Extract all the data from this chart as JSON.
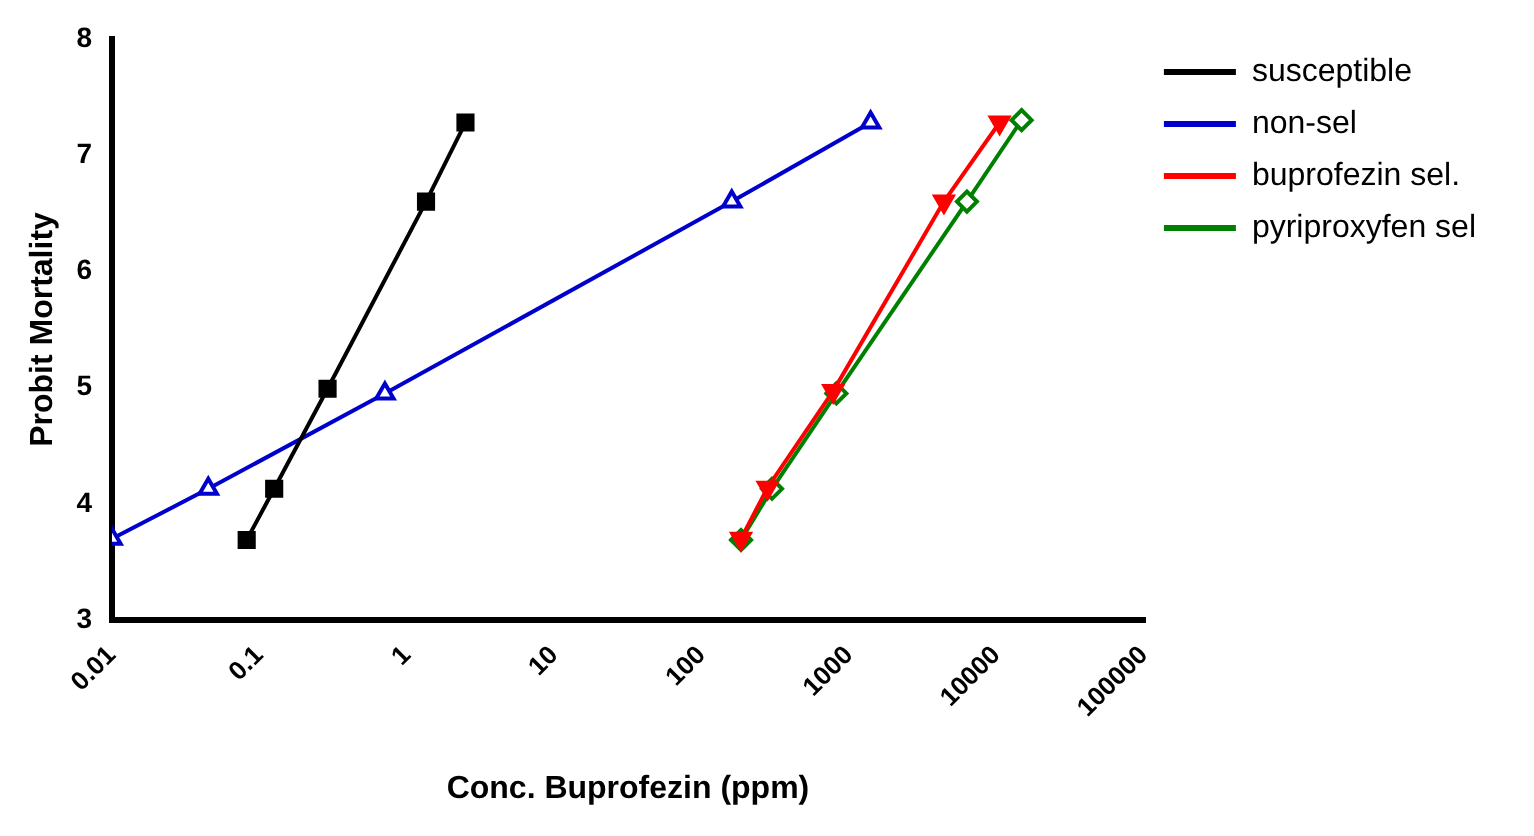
{
  "chart_data": {
    "type": "line",
    "xlabel": "Conc. Buprofezin (ppm)",
    "ylabel": "Probit Mortality",
    "log": "x",
    "xlim": [
      0.01,
      100000
    ],
    "xticks": [
      0.01,
      0.1,
      1,
      10,
      100,
      1000,
      10000,
      100000
    ],
    "ylim": [
      3,
      8
    ],
    "yticks": [
      3,
      4,
      5,
      6,
      7,
      8
    ],
    "grid": false,
    "legend": "right",
    "series": [
      {
        "name": "susceptible",
        "color": "#000000",
        "marker": "square",
        "x": [
          0.082,
          0.126,
          0.29,
          1.35,
          2.5
        ],
        "values": [
          3.69,
          4.13,
          4.99,
          6.6,
          7.28
        ]
      },
      {
        "name": "non-sel",
        "color": "#0000cc",
        "marker": "triangle",
        "x": [
          0.01,
          0.045,
          0.71,
          160,
          1400
        ],
        "values": [
          3.7,
          4.13,
          4.95,
          6.6,
          7.28
        ]
      },
      {
        "name": "buprofezin sel.",
        "color": "#ff0000",
        "marker": "triangle-down",
        "x": [
          185,
          280,
          780,
          4400,
          10500
        ],
        "values": [
          3.7,
          4.14,
          4.97,
          6.6,
          7.28
        ]
      },
      {
        "name": "pyriproxyfen sel",
        "color": "#008000",
        "marker": "diamond",
        "x": [
          185,
          300,
          820,
          6300,
          14800
        ],
        "values": [
          3.69,
          4.13,
          4.95,
          6.6,
          7.3
        ]
      }
    ]
  }
}
